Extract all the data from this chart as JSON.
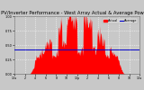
{
  "title": "Solar PV/Inverter Performance - West Array Actual & Average Power Output",
  "title_fontsize": 3.8,
  "bg_color": "#c8c8c8",
  "plot_bg_color": "#c8c8c8",
  "bar_color": "#ff0000",
  "avg_line_color": "#0000cc",
  "avg_value": 0.42,
  "ylim": [
    0,
    1.0
  ],
  "ytick_values": [
    0.0,
    0.25,
    0.5,
    0.75,
    1.0
  ],
  "ytick_labels": [
    "0.00",
    "0.25",
    "0.50",
    "0.75",
    "1.00"
  ],
  "grid_color": "#ffffff",
  "legend_actual_color": "#ff0000",
  "legend_avg_color": "#0000cc",
  "num_points": 288,
  "seed": 7
}
